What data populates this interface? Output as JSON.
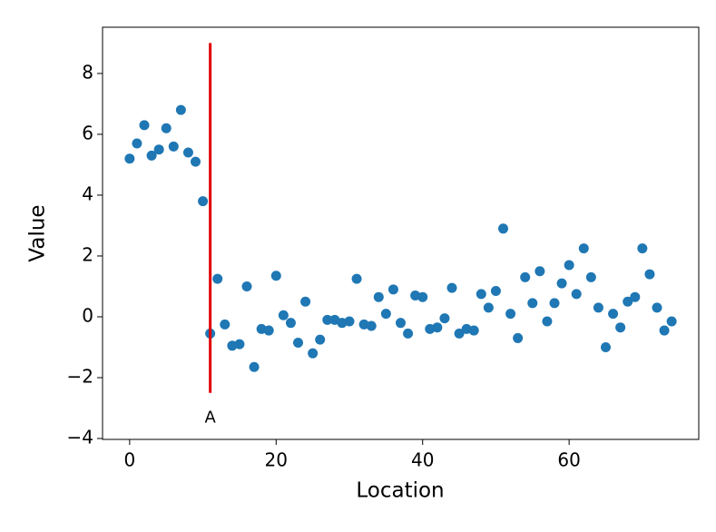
{
  "chart_data": {
    "type": "scatter",
    "x_label": "Location",
    "y_label": "Value",
    "color": "#1f77b4",
    "x": [
      0,
      1,
      2,
      3,
      4,
      5,
      6,
      7,
      8,
      9,
      10,
      11,
      12,
      13,
      14,
      15,
      16,
      17,
      18,
      19,
      20,
      21,
      22,
      23,
      24,
      25,
      26,
      27,
      28,
      29,
      30,
      31,
      32,
      33,
      34,
      35,
      36,
      37,
      38,
      39,
      40,
      41,
      42,
      43,
      44,
      45,
      46,
      47,
      48,
      49,
      50,
      51,
      52,
      53,
      54,
      55,
      56,
      57,
      58,
      59,
      60,
      61,
      62,
      63,
      64,
      65,
      66,
      67,
      68,
      69,
      70,
      71,
      72,
      73,
      74
    ],
    "values": [
      5.2,
      5.7,
      6.3,
      5.3,
      5.5,
      6.2,
      5.6,
      6.8,
      5.4,
      5.1,
      3.8,
      -0.55,
      1.25,
      -0.25,
      -0.95,
      -0.9,
      1.0,
      -1.65,
      -0.4,
      -0.45,
      1.35,
      0.05,
      -0.2,
      -0.85,
      0.5,
      -1.2,
      -0.75,
      -0.1,
      -0.1,
      -0.2,
      -0.15,
      1.25,
      -0.25,
      -0.3,
      0.65,
      0.1,
      0.9,
      -0.2,
      -0.55,
      0.7,
      0.65,
      -0.4,
      -0.35,
      -0.05,
      0.95,
      -0.55,
      -0.4,
      -0.45,
      0.75,
      0.3,
      0.85,
      2.9,
      0.1,
      -0.7,
      1.3,
      0.45,
      1.5,
      -0.15,
      0.45,
      1.1,
      1.7,
      0.75,
      2.25,
      1.3,
      0.3,
      -1.0,
      0.1,
      -0.35,
      0.5,
      0.65,
      2.25,
      1.4,
      0.3,
      -0.45,
      -0.15
    ],
    "xlim": [
      -3.7,
      77.7
    ],
    "ylim": [
      -4.03,
      9.52
    ],
    "xticks": [
      0,
      20,
      40,
      60
    ],
    "yticks": [
      -4,
      -2,
      0,
      2,
      4,
      6,
      8
    ],
    "vline": {
      "x": 11,
      "ymin": -2.5,
      "ymax": 9,
      "label": "A",
      "color": "#e00000"
    }
  }
}
